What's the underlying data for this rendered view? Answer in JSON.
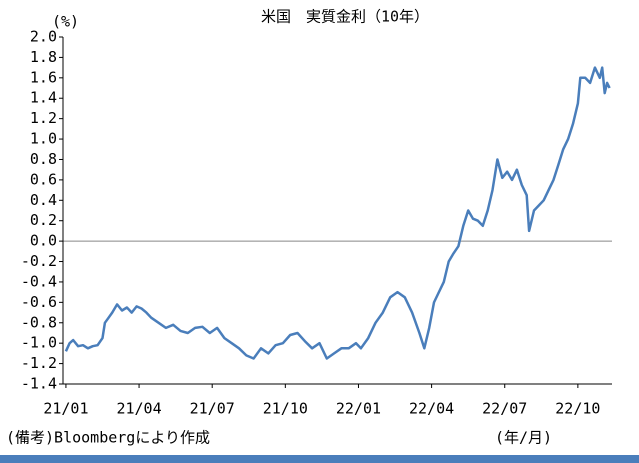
{
  "chart_data": {
    "type": "line",
    "title": "米国　実質金利（10年）",
    "y_unit_label": "(%)",
    "x_unit_label": "(年/月)",
    "source_note": "(備考)Bloombergにより作成",
    "x": [
      0,
      0.15,
      0.3,
      0.5,
      0.7,
      0.9,
      1.1,
      1.3,
      1.5,
      1.6,
      1.75,
      1.9,
      2.1,
      2.3,
      2.5,
      2.7,
      2.9,
      3.1,
      3.3,
      3.5,
      3.8,
      4.1,
      4.4,
      4.7,
      5.0,
      5.3,
      5.6,
      5.9,
      6.2,
      6.5,
      6.8,
      7.1,
      7.4,
      7.7,
      8.0,
      8.3,
      8.6,
      8.9,
      9.2,
      9.5,
      9.8,
      10.1,
      10.4,
      10.7,
      11.0,
      11.3,
      11.6,
      11.9,
      12.1,
      12.4,
      12.7,
      13.0,
      13.3,
      13.6,
      13.9,
      14.2,
      14.5,
      14.7,
      14.9,
      15.1,
      15.3,
      15.5,
      15.7,
      15.9,
      16.1,
      16.3,
      16.5,
      16.7,
      16.9,
      17.1,
      17.3,
      17.5,
      17.7,
      17.9,
      18.1,
      18.3,
      18.5,
      18.7,
      18.9,
      19.0,
      19.2,
      19.4,
      19.6,
      19.8,
      20.0,
      20.2,
      20.4,
      20.6,
      20.8,
      21.0,
      21.1,
      21.3,
      21.5,
      21.7,
      21.9,
      22.0,
      22.1,
      22.2,
      22.3
    ],
    "series": [
      {
        "color": "#4a7ebb",
        "values": [
          -1.08,
          -1.0,
          -0.97,
          -1.03,
          -1.02,
          -1.05,
          -1.03,
          -1.02,
          -0.95,
          -0.8,
          -0.75,
          -0.7,
          -0.62,
          -0.68,
          -0.65,
          -0.7,
          -0.64,
          -0.66,
          -0.7,
          -0.75,
          -0.8,
          -0.85,
          -0.82,
          -0.88,
          -0.9,
          -0.85,
          -0.84,
          -0.9,
          -0.85,
          -0.95,
          -1.0,
          -1.05,
          -1.12,
          -1.15,
          -1.05,
          -1.1,
          -1.02,
          -1.0,
          -0.92,
          -0.9,
          -0.98,
          -1.05,
          -1.0,
          -1.15,
          -1.1,
          -1.05,
          -1.05,
          -1.0,
          -1.05,
          -0.95,
          -0.8,
          -0.7,
          -0.55,
          -0.5,
          -0.55,
          -0.7,
          -0.9,
          -1.05,
          -0.85,
          -0.6,
          -0.5,
          -0.4,
          -0.2,
          -0.12,
          -0.05,
          0.15,
          0.3,
          0.22,
          0.2,
          0.15,
          0.3,
          0.5,
          0.8,
          0.62,
          0.68,
          0.6,
          0.7,
          0.55,
          0.45,
          0.1,
          0.3,
          0.35,
          0.4,
          0.5,
          0.6,
          0.75,
          0.9,
          1.0,
          1.15,
          1.35,
          1.6,
          1.6,
          1.55,
          1.7,
          1.6,
          1.7,
          1.45,
          1.55,
          1.5
        ]
      }
    ],
    "xlim": [
      -0.12,
      22.4
    ],
    "xticks": [
      {
        "value": 0,
        "label": "21/01"
      },
      {
        "value": 3,
        "label": "21/04"
      },
      {
        "value": 6,
        "label": "21/07"
      },
      {
        "value": 9,
        "label": "21/10"
      },
      {
        "value": 12,
        "label": "22/01"
      },
      {
        "value": 15,
        "label": "22/04"
      },
      {
        "value": 18,
        "label": "22/07"
      },
      {
        "value": 21,
        "label": "22/10"
      }
    ],
    "ylim": [
      -1.4,
      2.0
    ],
    "yticks": [
      {
        "value": 2,
        "label": "2.0"
      },
      1.8,
      1.6,
      1.4,
      1.2,
      {
        "value": 1,
        "label": "1.0"
      },
      0.8,
      0.6,
      0.4,
      0.2,
      {
        "value": 0,
        "label": "0.0"
      },
      -0.2,
      -0.4,
      -0.6,
      -0.8,
      {
        "value": -1,
        "label": "-1.0"
      },
      -1.2,
      -1.4
    ],
    "zero_line": true
  }
}
